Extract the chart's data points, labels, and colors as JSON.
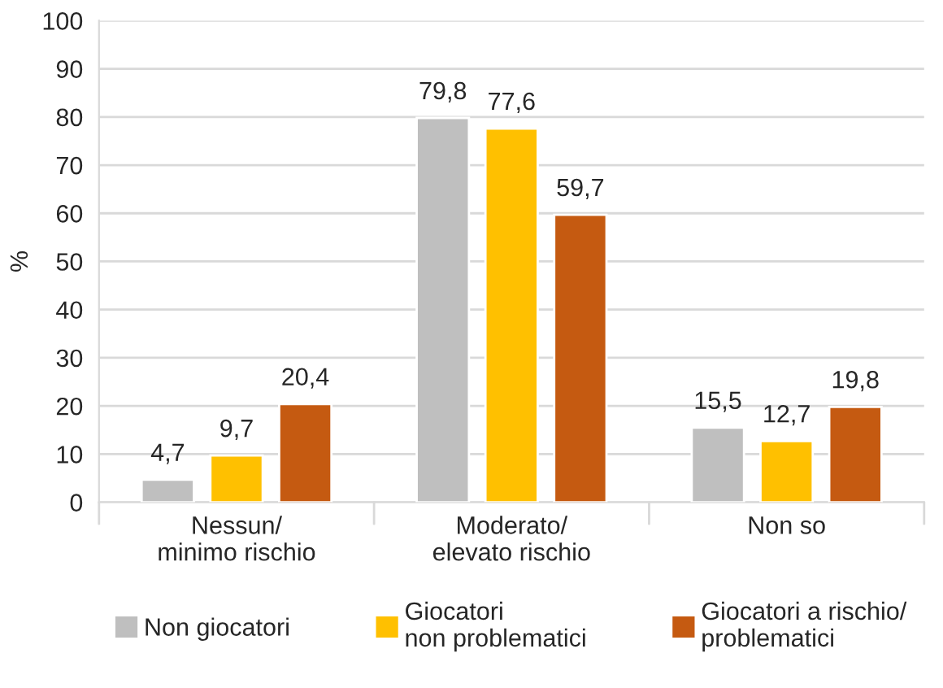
{
  "chart_data": {
    "type": "bar",
    "ylabel": "%",
    "categories": [
      "Nessun/\nminimo rischio",
      "Moderato/\nelevato rischio",
      "Non so"
    ],
    "series": [
      {
        "name": "Non giocatori",
        "color": "#bfbfbf",
        "values": [
          4.7,
          79.8,
          15.5
        ],
        "value_labels": [
          "4,7",
          "79,8",
          "15,5"
        ]
      },
      {
        "name": "Giocatori\nnon problematici",
        "color": "#ffc000",
        "values": [
          9.7,
          77.6,
          12.7
        ],
        "value_labels": [
          "9,7",
          "77,6",
          "12,7"
        ]
      },
      {
        "name": "Giocatori a rischio/\nproblematici",
        "color": "#c55a11",
        "values": [
          20.4,
          59.7,
          19.8
        ],
        "value_labels": [
          "20,4",
          "59,7",
          "19,8"
        ]
      }
    ],
    "ylim": [
      0,
      100
    ],
    "yticks": [
      0,
      10,
      20,
      30,
      40,
      50,
      60,
      70,
      80,
      90,
      100
    ],
    "grid": "y",
    "legend": "bottom"
  }
}
